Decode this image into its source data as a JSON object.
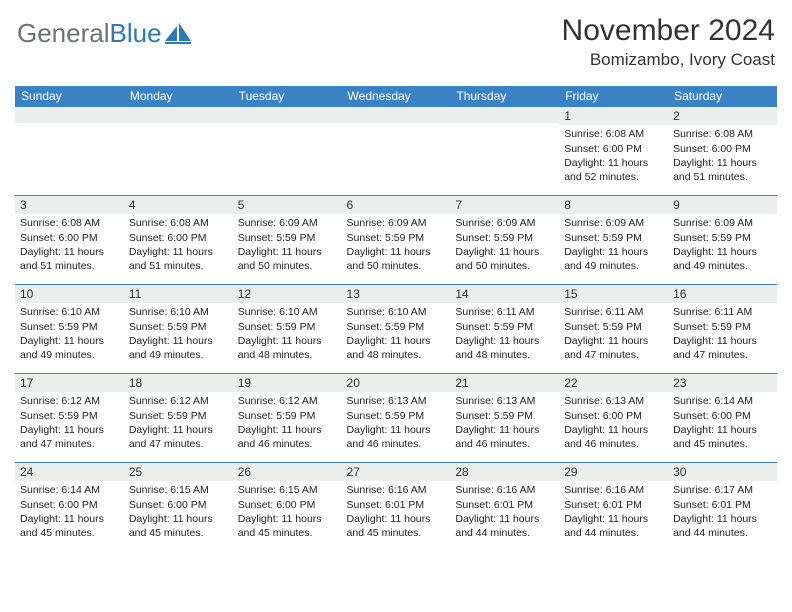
{
  "brand": {
    "word1": "General",
    "word2": "Blue",
    "word1_color": "#6f7070",
    "word2_color": "#2e77b8",
    "mark_color": "#2e77b8"
  },
  "title": "November 2024",
  "location": "Bomizambo, Ivory Coast",
  "colors": {
    "header_bg": "#3b82c4",
    "header_text": "#ffffff",
    "row_border": "#3b82c4",
    "daynum_bg": "#eceded",
    "text": "#222222",
    "page_bg": "#ffffff"
  },
  "weekday_labels": [
    "Sunday",
    "Monday",
    "Tuesday",
    "Wednesday",
    "Thursday",
    "Friday",
    "Saturday"
  ],
  "weeks": [
    [
      {
        "n": "",
        "sr": "",
        "ss": "",
        "dl": ""
      },
      {
        "n": "",
        "sr": "",
        "ss": "",
        "dl": ""
      },
      {
        "n": "",
        "sr": "",
        "ss": "",
        "dl": ""
      },
      {
        "n": "",
        "sr": "",
        "ss": "",
        "dl": ""
      },
      {
        "n": "",
        "sr": "",
        "ss": "",
        "dl": ""
      },
      {
        "n": "1",
        "sr": "Sunrise: 6:08 AM",
        "ss": "Sunset: 6:00 PM",
        "dl": "Daylight: 11 hours and 52 minutes."
      },
      {
        "n": "2",
        "sr": "Sunrise: 6:08 AM",
        "ss": "Sunset: 6:00 PM",
        "dl": "Daylight: 11 hours and 51 minutes."
      }
    ],
    [
      {
        "n": "3",
        "sr": "Sunrise: 6:08 AM",
        "ss": "Sunset: 6:00 PM",
        "dl": "Daylight: 11 hours and 51 minutes."
      },
      {
        "n": "4",
        "sr": "Sunrise: 6:08 AM",
        "ss": "Sunset: 6:00 PM",
        "dl": "Daylight: 11 hours and 51 minutes."
      },
      {
        "n": "5",
        "sr": "Sunrise: 6:09 AM",
        "ss": "Sunset: 5:59 PM",
        "dl": "Daylight: 11 hours and 50 minutes."
      },
      {
        "n": "6",
        "sr": "Sunrise: 6:09 AM",
        "ss": "Sunset: 5:59 PM",
        "dl": "Daylight: 11 hours and 50 minutes."
      },
      {
        "n": "7",
        "sr": "Sunrise: 6:09 AM",
        "ss": "Sunset: 5:59 PM",
        "dl": "Daylight: 11 hours and 50 minutes."
      },
      {
        "n": "8",
        "sr": "Sunrise: 6:09 AM",
        "ss": "Sunset: 5:59 PM",
        "dl": "Daylight: 11 hours and 49 minutes."
      },
      {
        "n": "9",
        "sr": "Sunrise: 6:09 AM",
        "ss": "Sunset: 5:59 PM",
        "dl": "Daylight: 11 hours and 49 minutes."
      }
    ],
    [
      {
        "n": "10",
        "sr": "Sunrise: 6:10 AM",
        "ss": "Sunset: 5:59 PM",
        "dl": "Daylight: 11 hours and 49 minutes."
      },
      {
        "n": "11",
        "sr": "Sunrise: 6:10 AM",
        "ss": "Sunset: 5:59 PM",
        "dl": "Daylight: 11 hours and 49 minutes."
      },
      {
        "n": "12",
        "sr": "Sunrise: 6:10 AM",
        "ss": "Sunset: 5:59 PM",
        "dl": "Daylight: 11 hours and 48 minutes."
      },
      {
        "n": "13",
        "sr": "Sunrise: 6:10 AM",
        "ss": "Sunset: 5:59 PM",
        "dl": "Daylight: 11 hours and 48 minutes."
      },
      {
        "n": "14",
        "sr": "Sunrise: 6:11 AM",
        "ss": "Sunset: 5:59 PM",
        "dl": "Daylight: 11 hours and 48 minutes."
      },
      {
        "n": "15",
        "sr": "Sunrise: 6:11 AM",
        "ss": "Sunset: 5:59 PM",
        "dl": "Daylight: 11 hours and 47 minutes."
      },
      {
        "n": "16",
        "sr": "Sunrise: 6:11 AM",
        "ss": "Sunset: 5:59 PM",
        "dl": "Daylight: 11 hours and 47 minutes."
      }
    ],
    [
      {
        "n": "17",
        "sr": "Sunrise: 6:12 AM",
        "ss": "Sunset: 5:59 PM",
        "dl": "Daylight: 11 hours and 47 minutes."
      },
      {
        "n": "18",
        "sr": "Sunrise: 6:12 AM",
        "ss": "Sunset: 5:59 PM",
        "dl": "Daylight: 11 hours and 47 minutes."
      },
      {
        "n": "19",
        "sr": "Sunrise: 6:12 AM",
        "ss": "Sunset: 5:59 PM",
        "dl": "Daylight: 11 hours and 46 minutes."
      },
      {
        "n": "20",
        "sr": "Sunrise: 6:13 AM",
        "ss": "Sunset: 5:59 PM",
        "dl": "Daylight: 11 hours and 46 minutes."
      },
      {
        "n": "21",
        "sr": "Sunrise: 6:13 AM",
        "ss": "Sunset: 5:59 PM",
        "dl": "Daylight: 11 hours and 46 minutes."
      },
      {
        "n": "22",
        "sr": "Sunrise: 6:13 AM",
        "ss": "Sunset: 6:00 PM",
        "dl": "Daylight: 11 hours and 46 minutes."
      },
      {
        "n": "23",
        "sr": "Sunrise: 6:14 AM",
        "ss": "Sunset: 6:00 PM",
        "dl": "Daylight: 11 hours and 45 minutes."
      }
    ],
    [
      {
        "n": "24",
        "sr": "Sunrise: 6:14 AM",
        "ss": "Sunset: 6:00 PM",
        "dl": "Daylight: 11 hours and 45 minutes."
      },
      {
        "n": "25",
        "sr": "Sunrise: 6:15 AM",
        "ss": "Sunset: 6:00 PM",
        "dl": "Daylight: 11 hours and 45 minutes."
      },
      {
        "n": "26",
        "sr": "Sunrise: 6:15 AM",
        "ss": "Sunset: 6:00 PM",
        "dl": "Daylight: 11 hours and 45 minutes."
      },
      {
        "n": "27",
        "sr": "Sunrise: 6:16 AM",
        "ss": "Sunset: 6:01 PM",
        "dl": "Daylight: 11 hours and 45 minutes."
      },
      {
        "n": "28",
        "sr": "Sunrise: 6:16 AM",
        "ss": "Sunset: 6:01 PM",
        "dl": "Daylight: 11 hours and 44 minutes."
      },
      {
        "n": "29",
        "sr": "Sunrise: 6:16 AM",
        "ss": "Sunset: 6:01 PM",
        "dl": "Daylight: 11 hours and 44 minutes."
      },
      {
        "n": "30",
        "sr": "Sunrise: 6:17 AM",
        "ss": "Sunset: 6:01 PM",
        "dl": "Daylight: 11 hours and 44 minutes."
      }
    ]
  ]
}
